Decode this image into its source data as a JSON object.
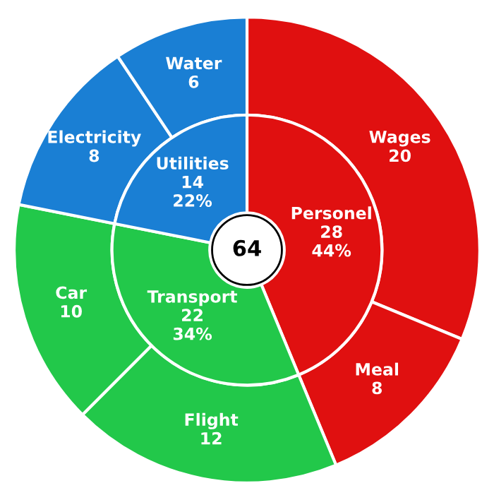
{
  "chart_data": {
    "type": "donut",
    "data_labels": true,
    "annotations": [
      "64"
    ],
    "categories": [
      "Wages",
      "Meal",
      "Flight",
      "Car",
      "Electricity",
      "Water"
    ],
    "series": [
      {
        "values": [
          20,
          8,
          12,
          10,
          8,
          6
        ],
        "colors": [
          "#e01010",
          "#e01010",
          "#22c84a",
          "#22c84a",
          "#1a7fd4",
          "#1a7fd4"
        ]
      },
      {
        "values": [
          28,
          null,
          22,
          null,
          14,
          null
        ],
        "colors": [
          "#e01010",
          null,
          "#22c84a",
          null,
          "#1a7fd4",
          null
        ],
        "value_labels": [
          "Personel\n28\n44%",
          null,
          "Transport\n22\n34%",
          null,
          "Utilities\n14\n22%",
          null
        ]
      }
    ]
  }
}
